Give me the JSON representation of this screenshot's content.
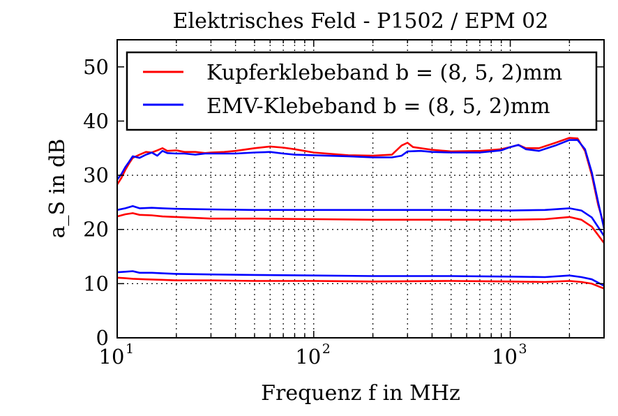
{
  "chart_data": {
    "type": "line",
    "title": "Elektrisches Feld - P1502 / EPM 02",
    "xlabel": "Frequenz f in MHz",
    "ylabel": "a_S in dB",
    "xscale": "log",
    "xlim": [
      10,
      3000
    ],
    "ylim": [
      0,
      55
    ],
    "yticks": [
      0,
      10,
      20,
      30,
      40,
      50
    ],
    "xticks": [
      {
        "value": 10,
        "base": "10",
        "exp": "1"
      },
      {
        "value": 100,
        "base": "10",
        "exp": "2"
      },
      {
        "value": 1000,
        "base": "10",
        "exp": "3"
      }
    ],
    "grid": true,
    "legend_position": "top",
    "legend": [
      {
        "label": "Kupferklebeband b = (8, 5, 2)mm",
        "color": "#ff0000"
      },
      {
        "label": "EMV-Klebeband b = (8, 5, 2)mm",
        "color": "#0000ff"
      }
    ],
    "series": [
      {
        "group": "Kupferklebeband",
        "color": "#ff0000",
        "points": [
          [
            10,
            28.3
          ],
          [
            10.5,
            29.5
          ],
          [
            11,
            31
          ],
          [
            11.5,
            32.2
          ],
          [
            12,
            33.2
          ],
          [
            13,
            33.8
          ],
          [
            14,
            34.3
          ],
          [
            15,
            34.2
          ],
          [
            16,
            34.6
          ],
          [
            17,
            35
          ],
          [
            18,
            34.5
          ],
          [
            20,
            34.6
          ],
          [
            22,
            34.3
          ],
          [
            25,
            34.3
          ],
          [
            28,
            34.1
          ],
          [
            30,
            34.2
          ],
          [
            35,
            34.3
          ],
          [
            40,
            34.5
          ],
          [
            50,
            35
          ],
          [
            60,
            35.3
          ],
          [
            70,
            35.1
          ],
          [
            80,
            34.8
          ],
          [
            100,
            34.2
          ],
          [
            150,
            33.7
          ],
          [
            200,
            33.6
          ],
          [
            250,
            33.8
          ],
          [
            280,
            35.5
          ],
          [
            300,
            36
          ],
          [
            320,
            35.2
          ],
          [
            400,
            34.7
          ],
          [
            500,
            34.4
          ],
          [
            700,
            34.5
          ],
          [
            900,
            34.8
          ],
          [
            1000,
            35.2
          ],
          [
            1100,
            35.6
          ],
          [
            1200,
            35
          ],
          [
            1400,
            35
          ],
          [
            1700,
            36
          ],
          [
            2000,
            36.9
          ],
          [
            2200,
            36.8
          ],
          [
            2400,
            34.5
          ],
          [
            2600,
            30
          ],
          [
            2800,
            24.5
          ],
          [
            3000,
            20.8
          ]
        ]
      },
      {
        "group": "Kupferklebeband",
        "color": "#ff0000",
        "points": [
          [
            10,
            22.4
          ],
          [
            11,
            22.8
          ],
          [
            12,
            23
          ],
          [
            13,
            22.7
          ],
          [
            15,
            22.6
          ],
          [
            17,
            22.4
          ],
          [
            20,
            22.3
          ],
          [
            30,
            22
          ],
          [
            50,
            22
          ],
          [
            100,
            21.9
          ],
          [
            200,
            21.8
          ],
          [
            500,
            21.8
          ],
          [
            1000,
            21.8
          ],
          [
            1500,
            21.9
          ],
          [
            2000,
            22.3
          ],
          [
            2300,
            21.8
          ],
          [
            2600,
            20.5
          ],
          [
            3000,
            17.5
          ]
        ]
      },
      {
        "group": "Kupferklebeband",
        "color": "#ff0000",
        "points": [
          [
            10,
            11.1
          ],
          [
            11,
            11
          ],
          [
            12,
            10.9
          ],
          [
            14,
            10.8
          ],
          [
            17,
            10.7
          ],
          [
            20,
            10.6
          ],
          [
            30,
            10.6
          ],
          [
            50,
            10.5
          ],
          [
            100,
            10.5
          ],
          [
            200,
            10.4
          ],
          [
            500,
            10.5
          ],
          [
            1000,
            10.4
          ],
          [
            1500,
            10.3
          ],
          [
            2000,
            10.5
          ],
          [
            2300,
            10.3
          ],
          [
            2600,
            10
          ],
          [
            3000,
            9.1
          ]
        ]
      },
      {
        "group": "EMV-Klebeband",
        "color": "#0000ff",
        "points": [
          [
            10,
            29.2
          ],
          [
            10.5,
            30.2
          ],
          [
            11,
            31.5
          ],
          [
            11.5,
            32.5
          ],
          [
            12,
            33.5
          ],
          [
            13,
            33.2
          ],
          [
            14,
            33.8
          ],
          [
            15,
            34.2
          ],
          [
            16,
            33.6
          ],
          [
            17,
            34.5
          ],
          [
            18,
            34.1
          ],
          [
            20,
            34
          ],
          [
            22,
            34
          ],
          [
            25,
            33.8
          ],
          [
            28,
            34
          ],
          [
            30,
            34
          ],
          [
            35,
            34
          ],
          [
            40,
            34
          ],
          [
            50,
            34.2
          ],
          [
            60,
            34.3
          ],
          [
            70,
            34
          ],
          [
            80,
            33.8
          ],
          [
            100,
            33.7
          ],
          [
            150,
            33.5
          ],
          [
            200,
            33.3
          ],
          [
            250,
            33.3
          ],
          [
            280,
            33.6
          ],
          [
            300,
            34.4
          ],
          [
            350,
            34.5
          ],
          [
            400,
            34.3
          ],
          [
            500,
            34.2
          ],
          [
            700,
            34.2
          ],
          [
            900,
            34.6
          ],
          [
            1000,
            35.2
          ],
          [
            1100,
            35.6
          ],
          [
            1200,
            34.8
          ],
          [
            1400,
            34.5
          ],
          [
            1700,
            35.5
          ],
          [
            2000,
            36.5
          ],
          [
            2200,
            36.5
          ],
          [
            2400,
            34.8
          ],
          [
            2600,
            30.5
          ],
          [
            2800,
            25
          ],
          [
            3000,
            20.2
          ]
        ]
      },
      {
        "group": "EMV-Klebeband",
        "color": "#0000ff",
        "points": [
          [
            10,
            23.6
          ],
          [
            11,
            23.9
          ],
          [
            12,
            24.3
          ],
          [
            13,
            23.9
          ],
          [
            15,
            24
          ],
          [
            17,
            23.9
          ],
          [
            20,
            23.8
          ],
          [
            30,
            23.7
          ],
          [
            50,
            23.6
          ],
          [
            100,
            23.6
          ],
          [
            200,
            23.6
          ],
          [
            500,
            23.6
          ],
          [
            1000,
            23.5
          ],
          [
            1500,
            23.6
          ],
          [
            2000,
            23.9
          ],
          [
            2300,
            23.5
          ],
          [
            2600,
            22.2
          ],
          [
            3000,
            18.8
          ]
        ]
      },
      {
        "group": "EMV-Klebeband",
        "color": "#0000ff",
        "points": [
          [
            10,
            12.1
          ],
          [
            11,
            12.2
          ],
          [
            12,
            12.3
          ],
          [
            13,
            12
          ],
          [
            15,
            12
          ],
          [
            17,
            11.9
          ],
          [
            20,
            11.8
          ],
          [
            30,
            11.7
          ],
          [
            50,
            11.6
          ],
          [
            100,
            11.5
          ],
          [
            200,
            11.4
          ],
          [
            500,
            11.4
          ],
          [
            1000,
            11.3
          ],
          [
            1500,
            11.2
          ],
          [
            2000,
            11.5
          ],
          [
            2300,
            11.2
          ],
          [
            2600,
            10.8
          ],
          [
            3000,
            9.6
          ]
        ]
      }
    ]
  }
}
